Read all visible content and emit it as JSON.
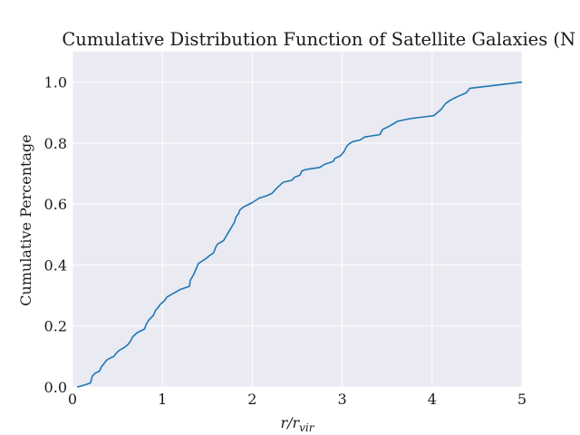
{
  "chart_data": {
    "type": "line",
    "title": "Cumulative Distribution Function of Satellite Galaxies (N =",
    "xlabel_main": "r/r",
    "xlabel_sub": "vir",
    "ylabel": "Cumulative Percentage",
    "xlim": [
      0,
      5
    ],
    "ylim": [
      0,
      1.1
    ],
    "xticks": [
      0,
      1,
      2,
      3,
      4,
      5
    ],
    "xtick_labels": [
      "0",
      "1",
      "2",
      "3",
      "4",
      "5"
    ],
    "yticks": [
      0,
      0.2,
      0.4,
      0.6,
      0.8,
      1.0
    ],
    "ytick_labels": [
      "0.0",
      "0.2",
      "0.4",
      "0.6",
      "0.8",
      "1.0"
    ],
    "grid": true,
    "background": "#eaeaf2",
    "series": [
      {
        "color": "#1f77b4",
        "x": [
          0.05,
          0.12,
          0.2,
          0.22,
          0.25,
          0.3,
          0.32,
          0.38,
          0.42,
          0.46,
          0.49,
          0.52,
          0.58,
          0.62,
          0.64,
          0.67,
          0.72,
          0.8,
          0.82,
          0.85,
          0.9,
          0.92,
          0.95,
          0.98,
          1.02,
          1.05,
          1.08,
          1.2,
          1.3,
          1.31,
          1.35,
          1.4,
          1.48,
          1.52,
          1.57,
          1.6,
          1.62,
          1.68,
          1.72,
          1.75,
          1.8,
          1.82,
          1.85,
          1.86,
          1.9,
          2.0,
          2.08,
          2.15,
          2.22,
          2.27,
          2.33,
          2.35,
          2.44,
          2.47,
          2.53,
          2.55,
          2.58,
          2.65,
          2.75,
          2.8,
          2.9,
          2.92,
          2.98,
          3.02,
          3.05,
          3.08,
          3.12,
          3.2,
          3.25,
          3.42,
          3.43,
          3.45,
          3.52,
          3.58,
          3.62,
          3.7,
          3.75,
          4.02,
          4.05,
          4.1,
          4.15,
          4.2,
          4.25,
          4.3,
          4.38,
          4.42,
          5.0
        ],
        "values": [
          0.0,
          0.005,
          0.013,
          0.035,
          0.045,
          0.052,
          0.065,
          0.088,
          0.095,
          0.1,
          0.112,
          0.12,
          0.13,
          0.14,
          0.148,
          0.165,
          0.178,
          0.19,
          0.205,
          0.22,
          0.235,
          0.25,
          0.26,
          0.272,
          0.282,
          0.295,
          0.3,
          0.32,
          0.33,
          0.35,
          0.37,
          0.405,
          0.42,
          0.43,
          0.44,
          0.463,
          0.47,
          0.48,
          0.5,
          0.515,
          0.54,
          0.558,
          0.57,
          0.58,
          0.59,
          0.605,
          0.62,
          0.626,
          0.635,
          0.652,
          0.668,
          0.672,
          0.678,
          0.688,
          0.695,
          0.708,
          0.712,
          0.716,
          0.72,
          0.73,
          0.74,
          0.75,
          0.758,
          0.772,
          0.79,
          0.798,
          0.805,
          0.81,
          0.82,
          0.828,
          0.835,
          0.845,
          0.855,
          0.865,
          0.872,
          0.877,
          0.88,
          0.89,
          0.898,
          0.91,
          0.93,
          0.94,
          0.948,
          0.955,
          0.965,
          0.98,
          1.0
        ]
      }
    ]
  }
}
